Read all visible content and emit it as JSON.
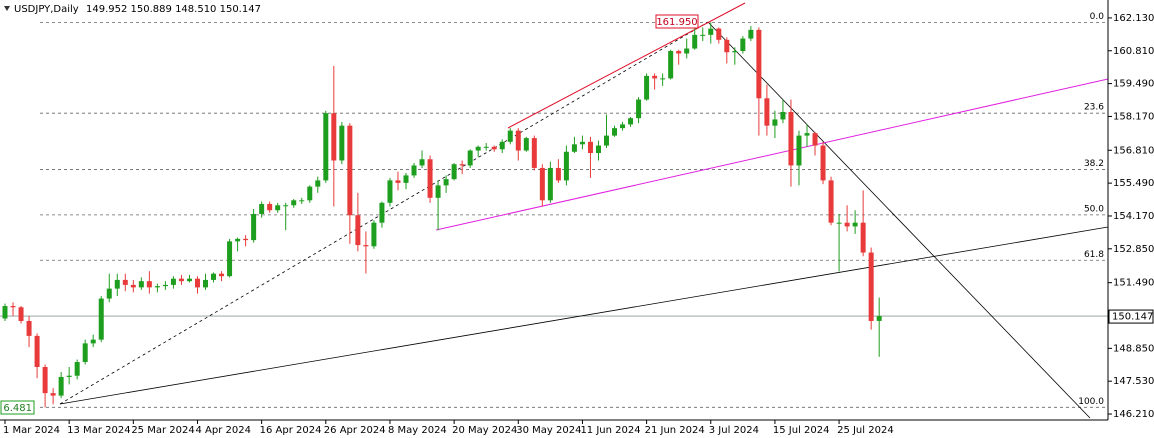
{
  "chart_data": {
    "type": "candlestick",
    "title": "USDJPY,Daily",
    "ohlc_text": "149.952 150.889 148.510 150.147",
    "up_color": "#1e9e1e",
    "down_color": "#e83a3a",
    "ylim": [
      145.97,
      162.85
    ],
    "yticks": [
      {
        "value": 162.13,
        "label": "162.130"
      },
      {
        "value": 160.81,
        "label": "160.810"
      },
      {
        "value": 159.49,
        "label": "159.490"
      },
      {
        "value": 158.17,
        "label": "158.170"
      },
      {
        "value": 156.81,
        "label": "156.810"
      },
      {
        "value": 155.49,
        "label": "155.490"
      },
      {
        "value": 154.17,
        "label": "154.170"
      },
      {
        "value": 152.85,
        "label": "152.850"
      },
      {
        "value": 151.49,
        "label": "151.490"
      },
      {
        "value": 148.85,
        "label": "148.850"
      },
      {
        "value": 147.53,
        "label": "147.530"
      },
      {
        "value": 146.21,
        "label": "146.210"
      }
    ],
    "categories": [
      "1 Mar 2024",
      null,
      null,
      null,
      null,
      null,
      null,
      null,
      "13 Mar 2024",
      null,
      null,
      null,
      null,
      null,
      null,
      null,
      "25 Mar 2024",
      null,
      null,
      null,
      null,
      null,
      null,
      null,
      "4 Apr 2024",
      null,
      null,
      null,
      null,
      null,
      null,
      null,
      "16 Apr 2024",
      null,
      null,
      null,
      null,
      null,
      null,
      null,
      "26 Apr 2024",
      null,
      null,
      null,
      null,
      null,
      null,
      null,
      "8 May 2024",
      null,
      null,
      null,
      null,
      null,
      null,
      null,
      "20 May 2024",
      null,
      null,
      null,
      null,
      null,
      null,
      null,
      "30 May 2024",
      null,
      null,
      null,
      null,
      null,
      null,
      null,
      "11 Jun 2024",
      null,
      null,
      null,
      null,
      null,
      null,
      null,
      "21 Jun 2024",
      null,
      null,
      null,
      null,
      null,
      null,
      null,
      "3 Jul 2024",
      null,
      null,
      null,
      null,
      null,
      null,
      null,
      "15 Jul 2024",
      null,
      null,
      null,
      null,
      null,
      null,
      null,
      "25 Jul 2024",
      null,
      null,
      null,
      null,
      null
    ],
    "open": [
      150.05,
      150.55,
      150.5,
      149.95,
      149.35,
      148.1,
      147.05,
      146.95,
      147.7,
      147.75,
      148.3,
      149.05,
      149.2,
      150.85,
      151.25,
      151.6,
      151.4,
      151.3,
      151.55,
      151.3,
      151.35,
      151.4,
      151.65,
      151.55,
      151.65,
      151.3,
      151.6,
      151.85,
      151.75,
      153.15,
      153.25,
      153.2,
      154.25,
      154.65,
      154.4,
      154.6,
      154.6,
      154.8,
      154.8,
      155.35,
      155.6,
      158.3,
      156.4,
      157.8,
      154.2,
      153.0,
      152.95,
      153.9,
      154.7,
      155.6,
      155.5,
      155.8,
      156.2,
      156.45,
      154.9,
      155.4,
      155.65,
      156.25,
      156.2,
      156.8,
      156.95,
      156.95,
      156.85,
      157.15,
      157.6,
      156.8,
      157.3,
      156.1,
      154.8,
      156.1,
      155.6,
      156.75,
      157.05,
      157.15,
      156.7,
      157.0,
      157.4,
      157.7,
      157.85,
      158.1,
      158.85,
      159.8,
      159.7,
      159.7,
      160.8,
      160.7,
      160.9,
      161.45,
      161.45,
      161.7,
      161.25,
      160.75,
      160.8,
      161.3,
      161.65,
      158.9,
      157.8,
      158.05,
      158.35,
      156.2,
      157.4,
      157.5,
      157.0,
      155.6,
      153.9,
      153.9,
      153.75,
      153.9,
      152.7,
      149.952
    ],
    "high": [
      150.65,
      150.7,
      150.55,
      150.15,
      149.45,
      148.2,
      147.25,
      147.9,
      148.1,
      148.4,
      149.2,
      149.4,
      150.95,
      151.85,
      151.85,
      151.85,
      151.6,
      151.7,
      151.95,
      151.45,
      151.55,
      151.75,
      151.8,
      151.8,
      151.75,
      151.85,
      151.9,
      151.95,
      153.25,
      153.3,
      153.4,
      154.45,
      154.75,
      154.75,
      154.7,
      154.7,
      154.85,
      154.9,
      155.4,
      155.75,
      158.4,
      160.2,
      157.95,
      157.9,
      155.1,
      153.55,
      154.0,
      154.75,
      155.7,
      155.95,
      155.9,
      156.3,
      156.8,
      156.6,
      155.6,
      155.8,
      156.3,
      156.4,
      156.85,
      157.0,
      157.1,
      157.0,
      157.25,
      157.7,
      157.7,
      157.35,
      157.4,
      156.25,
      156.35,
      156.45,
      157.0,
      157.35,
      157.4,
      157.35,
      157.2,
      158.25,
      157.8,
      157.95,
      158.15,
      158.95,
      159.9,
      159.9,
      159.9,
      160.85,
      160.85,
      161.3,
      161.7,
      161.75,
      161.95,
      161.75,
      161.35,
      160.95,
      161.4,
      161.8,
      161.75,
      159.45,
      158.4,
      158.85,
      158.85,
      157.6,
      157.85,
      157.55,
      157.15,
      155.75,
      154.25,
      154.6,
      154.4,
      155.2,
      152.9,
      150.889
    ],
    "low": [
      149.95,
      150.15,
      149.85,
      148.9,
      147.65,
      146.48,
      146.6,
      146.85,
      147.4,
      147.6,
      148.2,
      148.9,
      149.1,
      150.7,
      150.95,
      151.15,
      151.1,
      151.2,
      151.05,
      151.1,
      151.2,
      151.25,
      151.4,
      151.5,
      151.05,
      151.2,
      151.5,
      151.55,
      151.7,
      152.75,
      152.95,
      153.1,
      154.1,
      154.3,
      154.3,
      153.6,
      154.5,
      154.65,
      154.7,
      155.1,
      155.5,
      154.55,
      156.25,
      153.05,
      152.75,
      151.86,
      152.85,
      153.7,
      154.55,
      155.2,
      155.25,
      155.7,
      156.1,
      154.7,
      153.6,
      155.1,
      155.6,
      155.85,
      156.1,
      156.55,
      156.8,
      156.75,
      156.7,
      157.05,
      156.4,
      156.75,
      156.0,
      154.55,
      154.7,
      155.5,
      155.4,
      156.7,
      156.85,
      155.7,
      156.4,
      156.9,
      157.35,
      157.6,
      157.75,
      157.9,
      158.8,
      159.25,
      159.4,
      159.65,
      160.25,
      160.5,
      160.85,
      161.2,
      161.1,
      161.1,
      160.3,
      160.25,
      160.7,
      161.2,
      157.4,
      157.4,
      157.3,
      157.9,
      155.35,
      155.4,
      156.95,
      156.6,
      155.45,
      153.8,
      151.94,
      153.55,
      153.45,
      152.55,
      149.6,
      148.51
    ],
    "close": [
      150.55,
      150.5,
      149.95,
      149.35,
      148.1,
      147.05,
      146.95,
      147.7,
      147.75,
      148.3,
      149.05,
      149.2,
      150.85,
      151.25,
      151.6,
      151.4,
      151.3,
      151.55,
      151.3,
      151.35,
      151.4,
      151.65,
      151.55,
      151.65,
      151.3,
      151.6,
      151.85,
      151.75,
      153.15,
      153.25,
      153.2,
      154.25,
      154.65,
      154.4,
      154.6,
      154.6,
      154.8,
      154.8,
      155.35,
      155.6,
      158.3,
      156.4,
      157.8,
      154.2,
      153.0,
      152.95,
      153.9,
      154.7,
      155.6,
      155.5,
      155.8,
      156.2,
      156.45,
      154.9,
      155.4,
      155.65,
      156.25,
      156.2,
      156.8,
      156.95,
      156.95,
      156.85,
      157.15,
      157.6,
      156.8,
      157.3,
      156.1,
      154.8,
      156.1,
      155.6,
      156.75,
      157.05,
      157.15,
      156.7,
      157.0,
      157.4,
      157.7,
      157.85,
      158.1,
      158.85,
      159.8,
      159.7,
      159.7,
      160.8,
      160.7,
      160.9,
      161.45,
      161.45,
      161.7,
      161.25,
      160.75,
      160.8,
      161.3,
      161.65,
      158.9,
      157.8,
      158.05,
      158.35,
      156.2,
      157.4,
      157.5,
      157.0,
      155.6,
      153.9,
      153.9,
      153.75,
      153.9,
      152.7,
      149.95,
      150.147
    ],
    "fib_levels": [
      {
        "label": "0.0",
        "price": 161.95
      },
      {
        "label": "23.6",
        "price": 158.3
      },
      {
        "label": "38.2",
        "price": 156.04
      },
      {
        "label": "50.0",
        "price": 154.215
      },
      {
        "label": "61.8",
        "price": 152.39
      },
      {
        "label": "100.0",
        "price": 146.48
      }
    ],
    "annotations": [
      {
        "text": "161.950"
      },
      {
        "text": "6.481"
      }
    ]
  }
}
